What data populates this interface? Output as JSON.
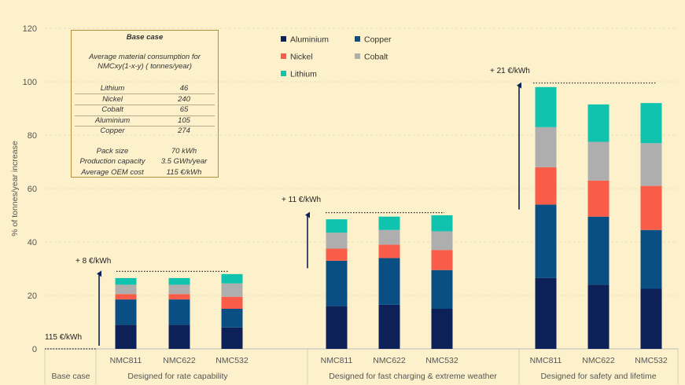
{
  "chart_data": {
    "type": "bar",
    "stacked": true,
    "ylabel": "% of tonnes/year increase",
    "ylim": [
      0,
      120
    ],
    "yticks": [
      0,
      20,
      40,
      60,
      80,
      100,
      120
    ],
    "grid": true,
    "legend_position": "top-center",
    "series": [
      {
        "name": "Aluminium",
        "color": "#0d2158",
        "values": [
          0,
          9,
          9,
          8,
          16,
          16.5,
          15,
          26.5,
          24,
          22.5
        ]
      },
      {
        "name": "Copper",
        "color": "#0a4f84",
        "values": [
          0,
          9.5,
          9.5,
          7,
          17,
          17.5,
          14.5,
          27.5,
          25.5,
          22
        ]
      },
      {
        "name": "Nickel",
        "color": "#f95c48",
        "values": [
          0,
          2,
          2,
          4.5,
          4.5,
          5,
          7.5,
          14,
          13.5,
          16.5
        ]
      },
      {
        "name": "Cobalt",
        "color": "#aeaeae",
        "values": [
          0,
          3.5,
          3.5,
          5,
          6,
          5.5,
          7,
          15,
          14.5,
          16
        ]
      },
      {
        "name": "Lithium",
        "color": "#10c3ae",
        "values": [
          0,
          2.5,
          2.5,
          3.5,
          5,
          5,
          6,
          15,
          14,
          15
        ]
      }
    ],
    "groups": [
      {
        "name": "Base case",
        "bars": [
          {
            "label": "",
            "index": 0
          }
        ],
        "annotation": "115 €/kWh"
      },
      {
        "name": "Designed for rate capability",
        "bars": [
          {
            "label": "NMC811",
            "index": 1
          },
          {
            "label": "NMC622",
            "index": 2
          },
          {
            "label": "NMC532",
            "index": 3
          }
        ],
        "annotation": "+ 8 €/kWh"
      },
      {
        "name": "Designed for fast charging & extreme weather",
        "bars": [
          {
            "label": "NMC811",
            "index": 4
          },
          {
            "label": "NMC622",
            "index": 5
          },
          {
            "label": "NMC532",
            "index": 6
          }
        ],
        "annotation": "+ 11 €/kWh"
      },
      {
        "name": "Designed for safety and lifetime",
        "bars": [
          {
            "label": "NMC811",
            "index": 7
          },
          {
            "label": "NMC622",
            "index": 8
          },
          {
            "label": "NMC532",
            "index": 9
          }
        ],
        "annotation": "+ 21 €/kWh"
      }
    ],
    "reference_levels": [
      {
        "group": 0,
        "value": 0
      },
      {
        "group": 1,
        "value": 29
      },
      {
        "group": 2,
        "value": 51
      },
      {
        "group": 3,
        "value": 99.5
      }
    ]
  },
  "info_box": {
    "title": "Base case",
    "description_line1": "Average material consumption for",
    "description_line2": "NMCxy(1-x-y)  ( tonnes/year)",
    "materials": [
      {
        "name": "Lithium",
        "value": "46"
      },
      {
        "name": "Nickel",
        "value": "240"
      },
      {
        "name": "Cobalt",
        "value": "65"
      },
      {
        "name": "Aluminium",
        "value": "105"
      },
      {
        "name": "Copper",
        "value": "274"
      }
    ],
    "specs": [
      {
        "name": "Pack size",
        "value": "70 kWh"
      },
      {
        "name": "Production capacity",
        "value": "3.5 GWh/year"
      },
      {
        "name": "Average OEM cost",
        "value": "115 €/kWh"
      }
    ]
  },
  "legend_order": [
    "Aluminium",
    "Copper",
    "Nickel",
    "Cobalt",
    "Lithium"
  ]
}
